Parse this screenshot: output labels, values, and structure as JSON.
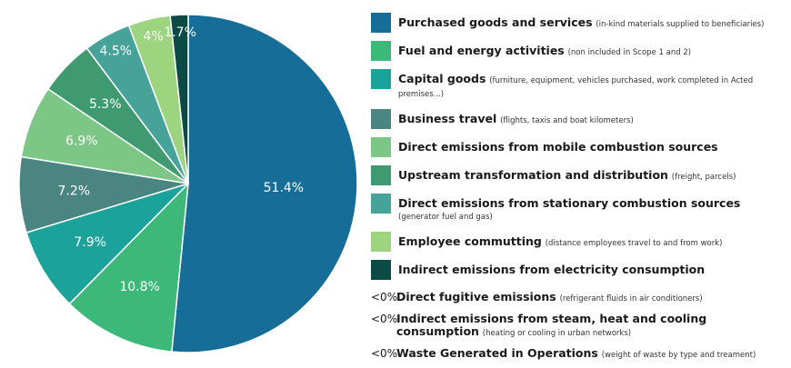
{
  "chart_data": {
    "type": "pie",
    "slices": [
      {
        "name": "Purchased goods and services",
        "value": 51.4,
        "label": "51.4%",
        "color": "#166d97"
      },
      {
        "name": "Fuel and energy activities",
        "value": 10.8,
        "label": "10.8%",
        "color": "#3cb878"
      },
      {
        "name": "Capital goods",
        "value": 7.9,
        "label": "7.9%",
        "color": "#1ba39b"
      },
      {
        "name": "Business travel",
        "value": 7.2,
        "label": "7.2%",
        "color": "#4b8582"
      },
      {
        "name": "Direct emissions from mobile combustion sources",
        "value": 6.9,
        "label": "6.9%",
        "color": "#7cc785"
      },
      {
        "name": "Upstream transformation and distribution",
        "value": 5.3,
        "label": "5.3%",
        "color": "#3f9a72"
      },
      {
        "name": "Direct emissions from stationary combustion sources",
        "value": 4.5,
        "label": "4.5%",
        "color": "#47a39a"
      },
      {
        "name": "Employee commutting",
        "value": 4.0,
        "label": "4%",
        "color": "#9dd480"
      },
      {
        "name": "Indirect emissions from electricity consumption",
        "value": 1.7,
        "label": "1.7%",
        "color": "#0b4a45"
      }
    ]
  },
  "legend": {
    "items": [
      {
        "name": "Purchased goods and services",
        "note": "(in-kind materials supplied to beneficiaries)",
        "color": "#166d97"
      },
      {
        "name": "Fuel and energy activities",
        "note": "(non included in Scope 1 and 2)",
        "color": "#3cb878"
      },
      {
        "name": "Capital goods",
        "note": "(furniture, equipment, vehicles purchased, work completed in Acted premises...)",
        "color": "#1ba39b"
      },
      {
        "name": "Business travel",
        "note": "(flights, taxis and boat kilometers)",
        "color": "#4b8582"
      },
      {
        "name": "Direct emissions from mobile combustion sources",
        "note": "",
        "color": "#7cc785"
      },
      {
        "name": "Upstream transformation and distribution",
        "note": "(freight, parcels)",
        "color": "#3f9a72"
      },
      {
        "name": "Direct emissions from stationary combustion sources",
        "note": "(generator fuel and gas)",
        "color": "#47a39a"
      },
      {
        "name": "Employee commutting",
        "note": "(distance employees travel to and from work)",
        "color": "#9dd480"
      },
      {
        "name": "Indirect emissions from electricity consumption",
        "note": "",
        "color": "#0b4a45"
      }
    ],
    "minor_items": [
      {
        "prefix": "<0%",
        "name": "Direct fugitive emissions",
        "note": "(refrigerant fluids in air conditioners)"
      },
      {
        "prefix": "<0%",
        "name": "Indirect emissions from steam, heat and cooling consumption",
        "note": "(heating or cooling in urban networks)"
      },
      {
        "prefix": "<0%",
        "name": "Waste Generated in Operations",
        "note": "(weight of waste by type and treament)"
      }
    ]
  }
}
